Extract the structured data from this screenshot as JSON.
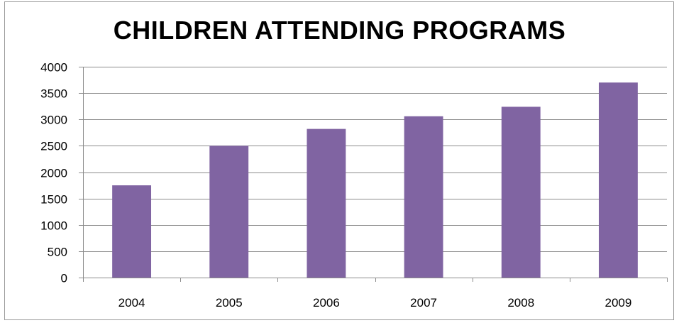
{
  "chart_data": {
    "type": "bar",
    "title": "CHILDREN ATTENDING PROGRAMS",
    "categories": [
      "2004",
      "2005",
      "2006",
      "2007",
      "2008",
      "2009"
    ],
    "values": [
      1750,
      2500,
      2820,
      3060,
      3240,
      3700
    ],
    "xlabel": "",
    "ylabel": "",
    "ylim": [
      0,
      4000
    ],
    "yticks": [
      0,
      500,
      1000,
      1500,
      2000,
      2500,
      3000,
      3500,
      4000
    ],
    "grid": true,
    "legend": "none",
    "bar_color": "#8064A2"
  }
}
